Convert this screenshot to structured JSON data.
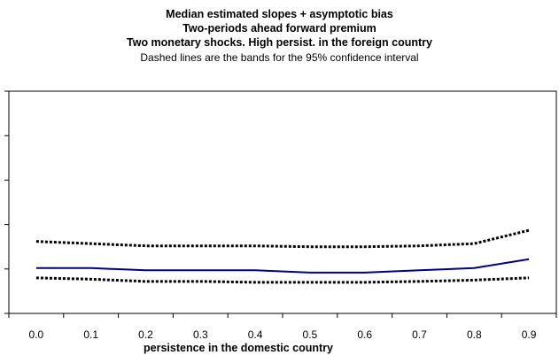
{
  "chart_data": {
    "type": "line",
    "title": "Median estimated slopes + asymptotic bias",
    "subtitle_lines": [
      "Two-periods ahead forward premium",
      "Two monetary shocks. High persist. in the foreign country",
      "Dashed lines are the bands for the 95% confidence interval"
    ],
    "xlabel": "persistence in the domestic country",
    "ylabel": "",
    "x": [
      0.0,
      0.1,
      0.2,
      0.3,
      0.4,
      0.5,
      0.6,
      0.7,
      0.8,
      0.9
    ],
    "x_tick_labels": [
      "0.0",
      "0.1",
      "0.2",
      "0.3",
      "0.4",
      "0.5",
      "0.6",
      "0.7",
      "0.8",
      "0.9"
    ],
    "ylim": [
      0,
      5
    ],
    "y_ticks_labeled": false,
    "grid": false,
    "legend": "none",
    "series": [
      {
        "style": "solid",
        "color": "#000080",
        "values": [
          1.02,
          1.02,
          0.97,
          0.97,
          0.97,
          0.92,
          0.92,
          0.97,
          1.02,
          1.22
        ]
      },
      {
        "style": "dashed",
        "color": "#000000",
        "values": [
          1.62,
          1.57,
          1.52,
          1.52,
          1.52,
          1.5,
          1.5,
          1.52,
          1.57,
          1.87
        ]
      },
      {
        "style": "dashed",
        "color": "#000000",
        "values": [
          0.8,
          0.77,
          0.72,
          0.72,
          0.7,
          0.7,
          0.7,
          0.72,
          0.75,
          0.8
        ]
      }
    ]
  }
}
